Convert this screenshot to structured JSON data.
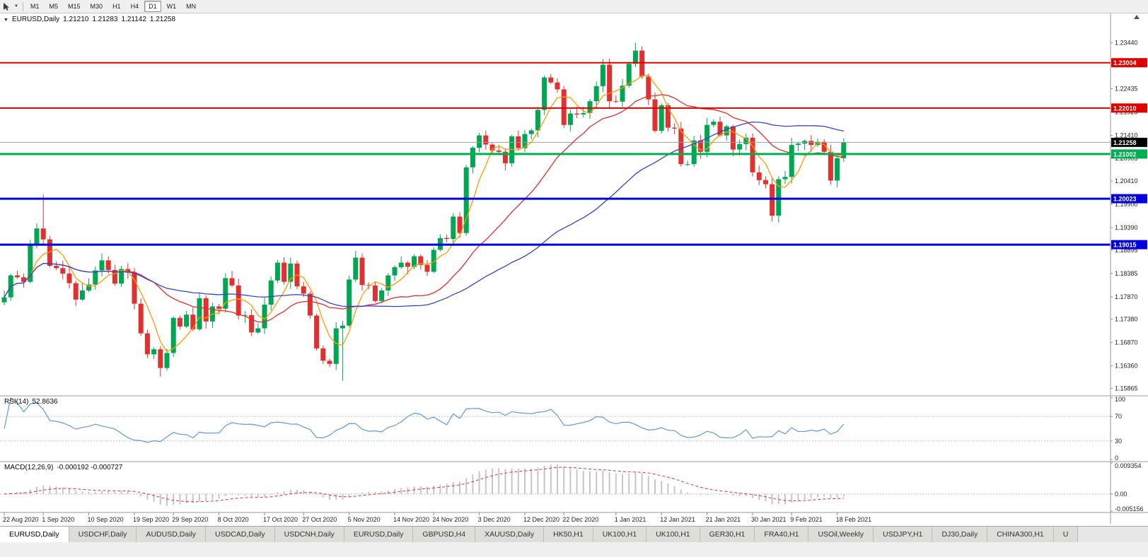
{
  "toolbar": {
    "timeframes": [
      "M1",
      "M5",
      "M15",
      "M30",
      "H1",
      "H4",
      "D1",
      "W1",
      "MN"
    ],
    "active_timeframe": "D1"
  },
  "chart_header": {
    "symbol": "EURUSD,Daily",
    "open": "1.21210",
    "high": "1.21283",
    "low": "1.21142",
    "close": "1.21258"
  },
  "rsi_panel": {
    "label": "RSI(14)",
    "value": "52.8636",
    "axis": [
      "100",
      "70",
      "30",
      "0"
    ]
  },
  "macd_panel": {
    "label": "MACD(12,26,9)",
    "values": "-0.000192 -0.000727",
    "axis": [
      "0.009354",
      "0.00",
      "-0.005156"
    ]
  },
  "tabs": [
    "EURUSD,Daily",
    "USDCHF,Daily",
    "AUDUSD,Daily",
    "USDCAD,Daily",
    "USDCNH,Daily",
    "EURUSD,Daily",
    "GBPUSD,H4",
    "XAUUSD,Daily",
    "HK50,H1",
    "UK100,H1",
    "UK100,H1",
    "GER30,H1",
    "FRA40,H1",
    "USOil,Weekly",
    "USDJPY,H1",
    "DJ30,Daily",
    "CHINA300,H1",
    "U"
  ],
  "active_tab": 0,
  "chart_data": {
    "type": "candlestick",
    "title": "EURUSD,Daily",
    "price_range": {
      "top": 1.241,
      "bottom": 1.157
    },
    "price_axis_labels": [
      "1.23440",
      "1.22950",
      "1.22435",
      "1.21925",
      "1.21410",
      "1.20905",
      "1.20410",
      "1.19900",
      "1.19390",
      "1.18895",
      "1.18385",
      "1.17870",
      "1.17380",
      "1.16870",
      "1.16360",
      "1.15865"
    ],
    "date_labels": [
      {
        "label": "22 Aug 2020",
        "index": 0
      },
      {
        "label": "1 Sep 2020",
        "index": 6
      },
      {
        "label": "10 Sep 2020",
        "index": 13
      },
      {
        "label": "19 Sep 2020",
        "index": 20
      },
      {
        "label": "29 Sep 2020",
        "index": 26
      },
      {
        "label": "8 Oct 2020",
        "index": 33
      },
      {
        "label": "17 Oct 2020",
        "index": 40
      },
      {
        "label": "27 Oct 2020",
        "index": 46
      },
      {
        "label": "5 Nov 2020",
        "index": 53
      },
      {
        "label": "14 Nov 2020",
        "index": 60
      },
      {
        "label": "24 Nov 2020",
        "index": 66
      },
      {
        "label": "3 Dec 2020",
        "index": 73
      },
      {
        "label": "12 Dec 2020",
        "index": 80
      },
      {
        "label": "22 Dec 2020",
        "index": 86
      },
      {
        "label": "1 Jan 2021",
        "index": 94
      },
      {
        "label": "12 Jan 2021",
        "index": 101
      },
      {
        "label": "21 Jan 2021",
        "index": 108
      },
      {
        "label": "30 Jan 2021",
        "index": 115
      },
      {
        "label": "9 Feb 2021",
        "index": 121
      },
      {
        "label": "18 Feb 2021",
        "index": 128
      }
    ],
    "first_open": 1.1775,
    "closes": [
      1.1786,
      1.1834,
      1.183,
      1.182,
      1.1903,
      1.1937,
      1.1913,
      1.1855,
      1.185,
      1.1838,
      1.1817,
      1.1781,
      1.1801,
      1.1814,
      1.1845,
      1.1867,
      1.1846,
      1.1816,
      1.1848,
      1.184,
      1.1772,
      1.1707,
      1.1661,
      1.1672,
      1.1631,
      1.1664,
      1.1741,
      1.1722,
      1.1748,
      1.1716,
      1.1784,
      1.1733,
      1.1766,
      1.1761,
      1.1828,
      1.1812,
      1.1746,
      1.1747,
      1.1709,
      1.1718,
      1.177,
      1.1823,
      1.1862,
      1.182,
      1.186,
      1.181,
      1.1794,
      1.1746,
      1.1674,
      1.1647,
      1.164,
      1.1718,
      1.1724,
      1.1825,
      1.1873,
      1.1813,
      1.1812,
      1.1778,
      1.1801,
      1.1834,
      1.1852,
      1.1862,
      1.1853,
      1.1876,
      1.1857,
      1.1842,
      1.189,
      1.1916,
      1.1914,
      1.1963,
      1.1927,
      1.2071,
      1.2114,
      1.2141,
      1.2121,
      1.2108,
      1.2105,
      1.208,
      1.2139,
      1.2113,
      1.2144,
      1.2152,
      1.2197,
      1.2268,
      1.2257,
      1.2242,
      1.2164,
      1.2189,
      1.2187,
      1.219,
      1.2216,
      1.2249,
      1.2296,
      1.2216,
      1.2215,
      1.225,
      1.2298,
      1.2327,
      1.227,
      1.222,
      1.2151,
      1.2207,
      1.2158,
      1.2156,
      1.2078,
      1.2078,
      1.213,
      1.2105,
      1.2164,
      1.2171,
      1.2141,
      1.2161,
      1.211,
      1.2122,
      1.2136,
      1.206,
      1.2043,
      1.2034,
      1.1965,
      1.2045,
      1.205,
      1.212,
      1.2123,
      1.2129,
      1.212,
      1.2127,
      1.2105,
      1.2042,
      1.2091,
      1.2126
    ],
    "wick_overrides": {
      "6": {
        "high": 1.2011
      },
      "24": {
        "low": 1.1612
      },
      "52": {
        "low": 1.1603
      },
      "97": {
        "high": 1.2344
      },
      "118": {
        "low": 1.1952
      }
    },
    "candle_colors": {
      "up": "#00a651",
      "down": "#e03131"
    },
    "ma": [
      {
        "name": "ma-fast",
        "period": 5,
        "color": "#ff9a00"
      },
      {
        "name": "ma-medium",
        "period": 20,
        "color": "#e52b2b"
      },
      {
        "name": "ma-slow",
        "period": 45,
        "color": "#3344cc"
      }
    ],
    "hlines": [
      {
        "price": 1.23004,
        "label": "1.23004",
        "color": "#e00000",
        "width": 2
      },
      {
        "price": 1.2201,
        "label": "1.22010",
        "color": "#e00000",
        "width": 2
      },
      {
        "price": 1.21002,
        "label": "1.21002",
        "color": "#00b050",
        "width": 3
      },
      {
        "price": 1.20023,
        "label": "1.20023",
        "color": "#0000e0",
        "width": 3
      },
      {
        "price": 1.19015,
        "label": "1.19015",
        "color": "#0000e0",
        "width": 3
      }
    ],
    "current_price": {
      "value": 1.21258,
      "label": "1.21258",
      "line_color": "#9f9f9f",
      "badge_color": "#000000"
    },
    "rsi": {
      "period": 14,
      "color": "#5b9bd5",
      "levels": [
        70,
        30
      ],
      "range": [
        0,
        100
      ]
    },
    "macd": {
      "range": {
        "max": 0.009354,
        "min": -0.005156
      },
      "histogram_color": "#c6c6c6",
      "signal_color": "#e03030"
    }
  }
}
